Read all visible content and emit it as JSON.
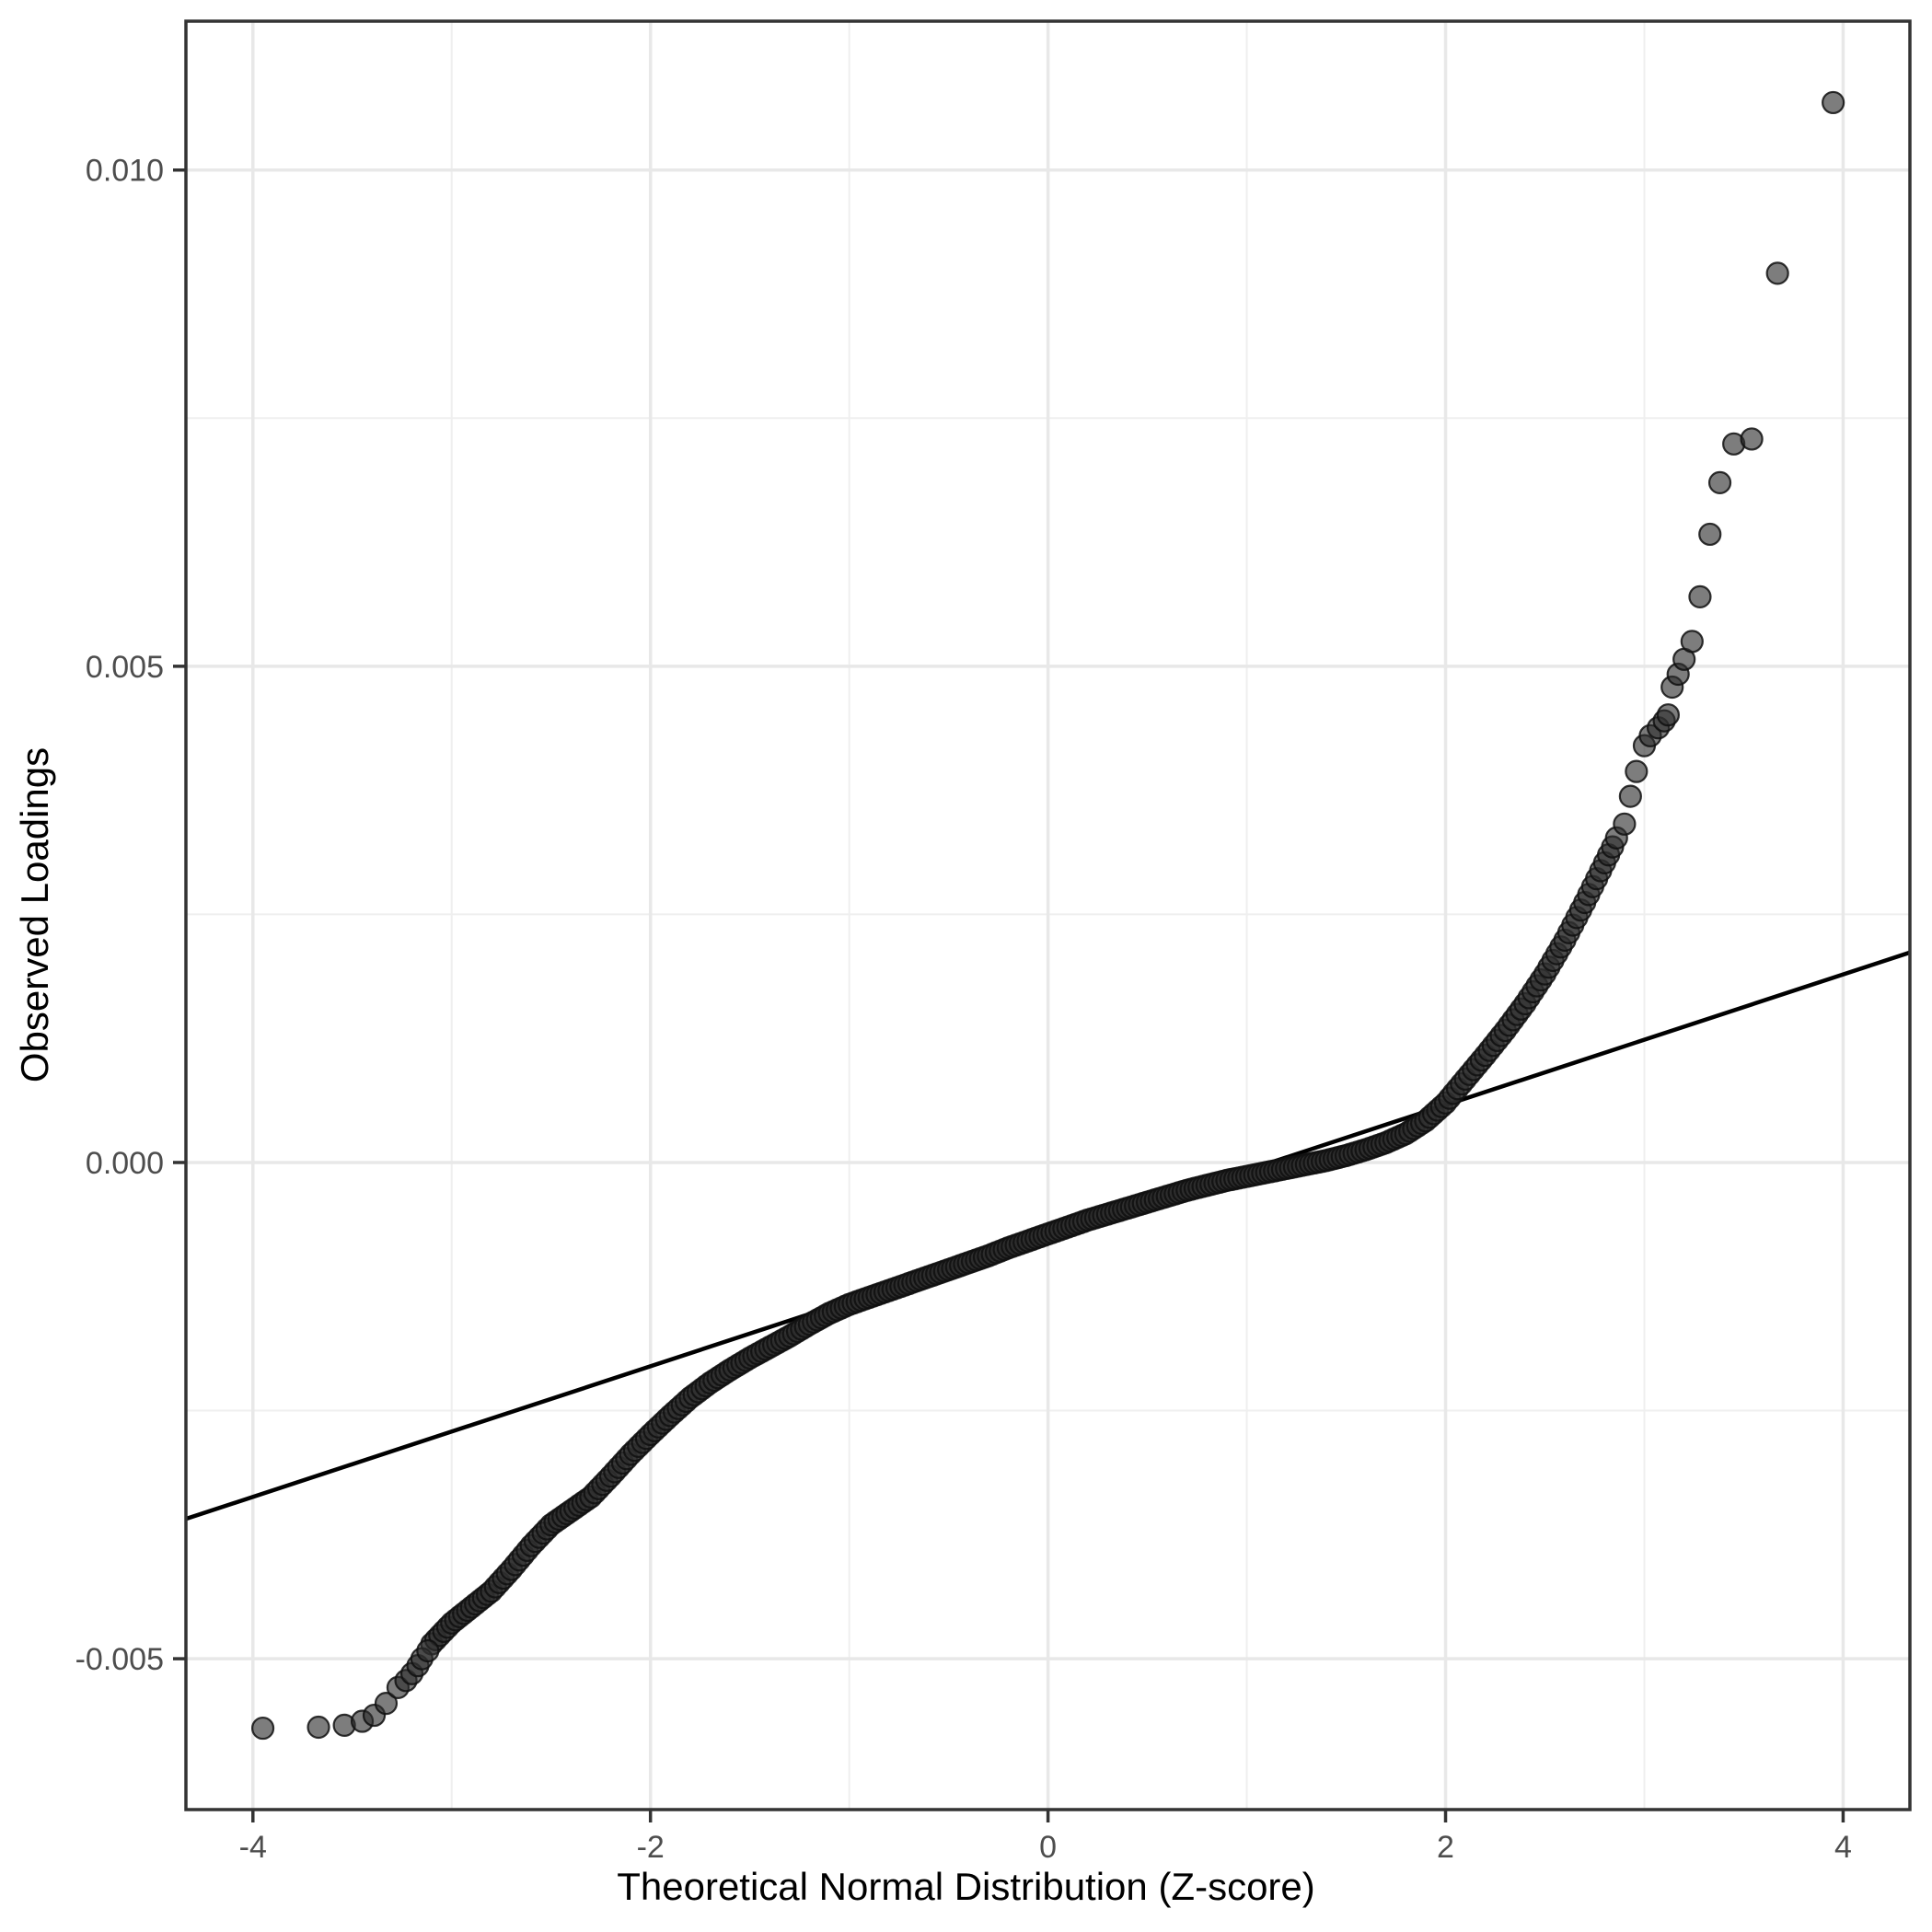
{
  "figure": {
    "xlabel": "Theoretical Normal Distribution (Z-score)",
    "ylabel": "Observed Loadings"
  },
  "style": {
    "background": "#ffffff",
    "grid_major": "#e8e8e8",
    "grid_minor": "#efefef",
    "panel_border": "#333333",
    "tick_mark_color": "#333333",
    "tick_label_color": "#4d4d4d",
    "point_fill": "rgba(45,45,45,0.62)",
    "point_stroke": "rgba(15,15,15,0.85)",
    "ref_line_color": "#000000"
  },
  "chart_data": {
    "type": "scatter",
    "subtype": "qq-plot",
    "title": "",
    "xlabel": "Theoretical Normal Distribution (Z-score)",
    "ylabel": "Observed Loadings",
    "legend": false,
    "grid": true,
    "xlim": [
      -4.337,
      4.336
    ],
    "ylim": [
      -0.00652,
      0.0115
    ],
    "x_major_ticks": [
      -4,
      -2,
      0,
      2,
      4
    ],
    "x_tick_labels": [
      "-4",
      "-2",
      "0",
      "2",
      "4"
    ],
    "x_minor_ticks": [
      -3,
      -1,
      1,
      3
    ],
    "y_major_ticks": [
      -0.005,
      0.0,
      0.005,
      0.01
    ],
    "y_tick_labels": [
      "-0.005",
      "0.000",
      "0.005",
      "0.010"
    ],
    "y_minor_ticks": [
      -0.0025,
      0.0025,
      0.0075
    ],
    "reference_line": {
      "slope": 0.000658,
      "intercept": -0.000737
    },
    "band_step": 0.02,
    "curve_quantiles": [
      [
        -3.1,
        -0.00485
      ],
      [
        -3.0,
        -0.00464
      ],
      [
        -2.9,
        -0.00448
      ],
      [
        -2.8,
        -0.00432
      ],
      [
        -2.7,
        -0.0041
      ],
      [
        -2.6,
        -0.00386
      ],
      [
        -2.5,
        -0.00365
      ],
      [
        -2.4,
        -0.00351
      ],
      [
        -2.3,
        -0.00337
      ],
      [
        -2.2,
        -0.00316
      ],
      [
        -2.1,
        -0.00294
      ],
      [
        -2.0,
        -0.00274
      ],
      [
        -1.9,
        -0.00255
      ],
      [
        -1.8,
        -0.00237
      ],
      [
        -1.7,
        -0.00222
      ],
      [
        -1.6,
        -0.00209
      ],
      [
        -1.5,
        -0.00197
      ],
      [
        -1.4,
        -0.00186
      ],
      [
        -1.3,
        -0.00175
      ],
      [
        -1.2,
        -0.00163
      ],
      [
        -1.1,
        -0.00152
      ],
      [
        -1.0,
        -0.00143
      ],
      [
        -0.9,
        -0.00136
      ],
      [
        -0.8,
        -0.00129
      ],
      [
        -0.7,
        -0.00122
      ],
      [
        -0.6,
        -0.00115
      ],
      [
        -0.5,
        -0.00108
      ],
      [
        -0.4,
        -0.00101
      ],
      [
        -0.3,
        -0.00094
      ],
      [
        -0.2,
        -0.00086
      ],
      [
        -0.1,
        -0.00079
      ],
      [
        0.0,
        -0.00072
      ],
      [
        0.1,
        -0.00065
      ],
      [
        0.2,
        -0.00058
      ],
      [
        0.3,
        -0.00052
      ],
      [
        0.4,
        -0.00046
      ],
      [
        0.5,
        -0.0004
      ],
      [
        0.6,
        -0.00034
      ],
      [
        0.7,
        -0.00028
      ],
      [
        0.8,
        -0.00023
      ],
      [
        0.9,
        -0.00018
      ],
      [
        1.0,
        -0.00014
      ],
      [
        1.1,
        -0.0001
      ],
      [
        1.2,
        -6e-05
      ],
      [
        1.3,
        -2e-05
      ],
      [
        1.4,
        2e-05
      ],
      [
        1.5,
        7e-05
      ],
      [
        1.6,
        0.00013
      ],
      [
        1.7,
        0.0002
      ],
      [
        1.8,
        0.00029
      ],
      [
        1.9,
        0.00042
      ],
      [
        2.0,
        0.0006
      ],
      [
        2.1,
        0.00084
      ],
      [
        2.2,
        0.00108
      ],
      [
        2.3,
        0.00133
      ],
      [
        2.4,
        0.0016
      ],
      [
        2.5,
        0.0019
      ],
      [
        2.6,
        0.00224
      ],
      [
        2.7,
        0.00262
      ],
      [
        2.8,
        0.00302
      ],
      [
        2.85,
        0.00322
      ]
    ],
    "upper_tail_points": [
      [
        2.86,
        0.00327
      ],
      [
        2.9,
        0.00341
      ],
      [
        2.93,
        0.00369
      ],
      [
        2.96,
        0.00394
      ],
      [
        3.0,
        0.0042
      ],
      [
        3.03,
        0.0043
      ],
      [
        3.07,
        0.00438
      ],
      [
        3.1,
        0.00445
      ],
      [
        3.12,
        0.00451
      ],
      [
        3.14,
        0.00479
      ],
      [
        3.17,
        0.00492
      ],
      [
        3.2,
        0.00507
      ],
      [
        3.24,
        0.00525
      ],
      [
        3.28,
        0.0057
      ],
      [
        3.33,
        0.00633
      ],
      [
        3.38,
        0.00685
      ],
      [
        3.45,
        0.00724
      ],
      [
        3.54,
        0.00729
      ],
      [
        3.67,
        0.00896
      ],
      [
        3.95,
        0.01068
      ]
    ],
    "lower_tail_points": [
      [
        -3.95,
        -0.0057
      ],
      [
        -3.67,
        -0.00569
      ],
      [
        -3.54,
        -0.00567
      ],
      [
        -3.45,
        -0.00563
      ],
      [
        -3.39,
        -0.00557
      ],
      [
        -3.33,
        -0.00545
      ],
      [
        -3.27,
        -0.00529
      ],
      [
        -3.23,
        -0.00522
      ],
      [
        -3.2,
        -0.00515
      ],
      [
        -3.17,
        -0.00507
      ],
      [
        -3.15,
        -0.005
      ],
      [
        -3.12,
        -0.00492
      ]
    ]
  }
}
